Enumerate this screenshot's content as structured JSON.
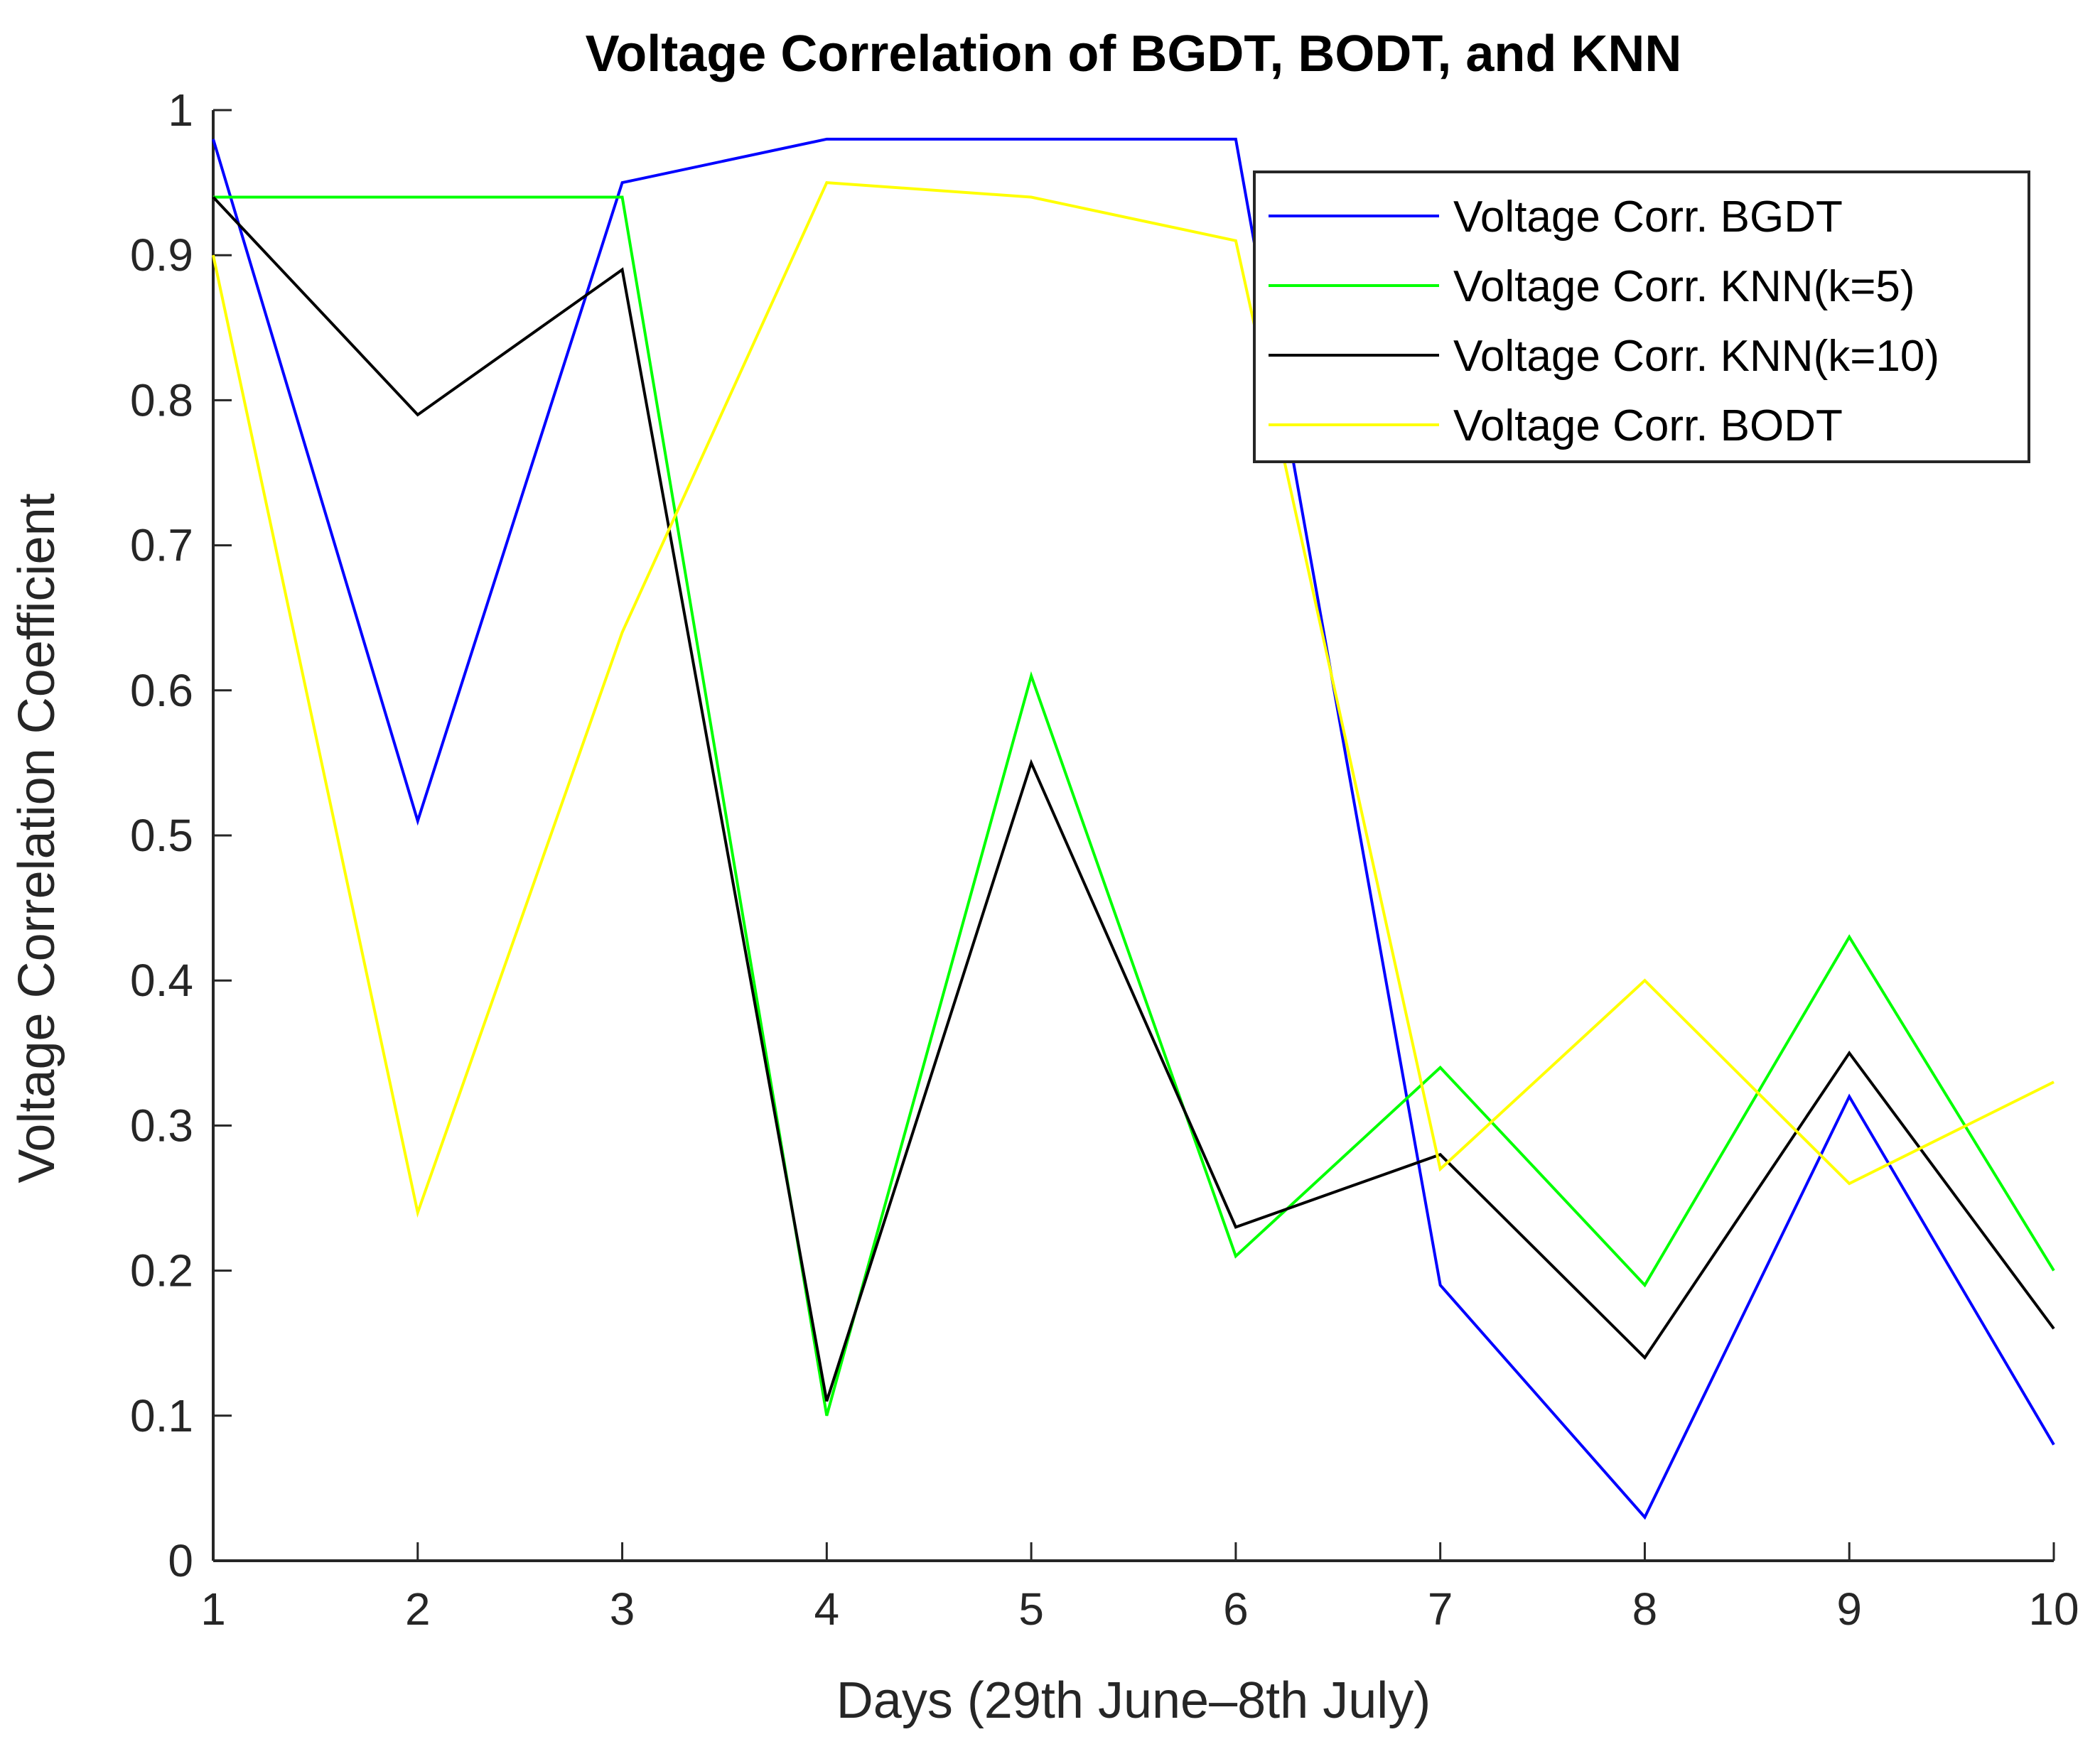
{
  "chart_data": {
    "type": "line",
    "title": "Voltage Correlation of BGDT, BODT, and KNN",
    "xlabel": "Days (29th June–8th July)",
    "ylabel": "Voltage Correlation Coefficient",
    "x": [
      1,
      2,
      3,
      4,
      5,
      6,
      7,
      8,
      9,
      10
    ],
    "xlim": [
      1,
      10
    ],
    "ylim": [
      0,
      1
    ],
    "x_ticks": [
      "1",
      "2",
      "3",
      "4",
      "5",
      "6",
      "7",
      "8",
      "9",
      "10"
    ],
    "y_ticks": [
      "0",
      "0.1",
      "0.2",
      "0.3",
      "0.4",
      "0.5",
      "0.6",
      "0.7",
      "0.8",
      "0.9",
      "1"
    ],
    "legend_position": "top-right",
    "grid": false,
    "series": [
      {
        "name": "Voltage Corr. BGDT",
        "color": "#0000ff",
        "values": [
          0.98,
          0.51,
          0.95,
          0.98,
          0.98,
          0.98,
          0.19,
          0.03,
          0.32,
          0.08
        ]
      },
      {
        "name": "Voltage Corr. KNN(k=5)",
        "color": "#00ff00",
        "values": [
          0.94,
          0.94,
          0.94,
          0.1,
          0.61,
          0.21,
          0.34,
          0.19,
          0.43,
          0.2
        ]
      },
      {
        "name": "Voltage Corr. KNN(k=10)",
        "color": "#000000",
        "values": [
          0.94,
          0.79,
          0.89,
          0.11,
          0.55,
          0.23,
          0.28,
          0.14,
          0.35,
          0.16
        ]
      },
      {
        "name": "Voltage Corr. BODT",
        "color": "#ffff00",
        "values": [
          0.9,
          0.24,
          0.64,
          0.95,
          0.94,
          0.91,
          0.27,
          0.4,
          0.26,
          0.33
        ]
      }
    ]
  }
}
